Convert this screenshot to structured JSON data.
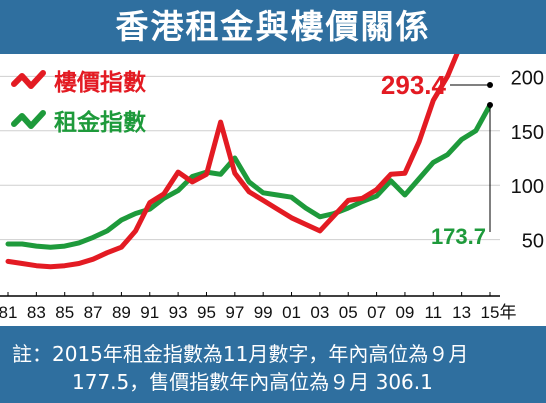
{
  "title": "香港租金與樓價關係",
  "note": {
    "line1": "註：2015年租金指數為11月數字，年內高位為９月",
    "line2": "177.5，售價指數年內高位為９月 306.1"
  },
  "chart_data": {
    "type": "line",
    "title": "香港租金與樓價關係",
    "x": [
      1981,
      1982,
      1983,
      1984,
      1985,
      1986,
      1987,
      1988,
      1989,
      1990,
      1991,
      1992,
      1993,
      1994,
      1995,
      1996,
      1997,
      1998,
      1999,
      2000,
      2001,
      2002,
      2003,
      2004,
      2005,
      2006,
      2007,
      2008,
      2009,
      2010,
      2011,
      2012,
      2013,
      2014,
      2015
    ],
    "xlim": [
      1981,
      2015
    ],
    "ylim": [
      0,
      300
    ],
    "x_ticks": [
      "81",
      "83",
      "85",
      "87",
      "89",
      "91",
      "93",
      "95",
      "97",
      "99",
      "01",
      "03",
      "05",
      "07",
      "09",
      "11",
      "13",
      "15"
    ],
    "x_unit": "年",
    "y_ticks": [
      50,
      100,
      150,
      200,
      250
    ],
    "grid": true,
    "legend_position": "top-left",
    "series": [
      {
        "name": "樓價指數",
        "color": "#e31b23",
        "values": [
          30,
          28,
          26,
          25,
          26,
          28,
          32,
          38,
          43,
          58,
          84,
          92,
          112,
          103,
          110,
          158,
          111,
          94,
          86,
          78,
          70,
          64,
          58,
          72,
          86,
          88,
          96,
          110,
          111,
          140,
          178,
          200,
          231,
          242,
          293.4
        ],
        "end_label": "293.4"
      },
      {
        "name": "租金指數",
        "color": "#1e9a3b",
        "values": [
          46,
          46,
          44,
          43,
          44,
          47,
          52,
          58,
          68,
          74,
          78,
          88,
          95,
          108,
          112,
          110,
          125,
          103,
          93,
          91,
          89,
          79,
          71,
          74,
          79,
          85,
          90,
          104,
          91,
          106,
          121,
          128,
          142,
          150,
          173.7
        ],
        "end_label": "173.7"
      }
    ]
  }
}
